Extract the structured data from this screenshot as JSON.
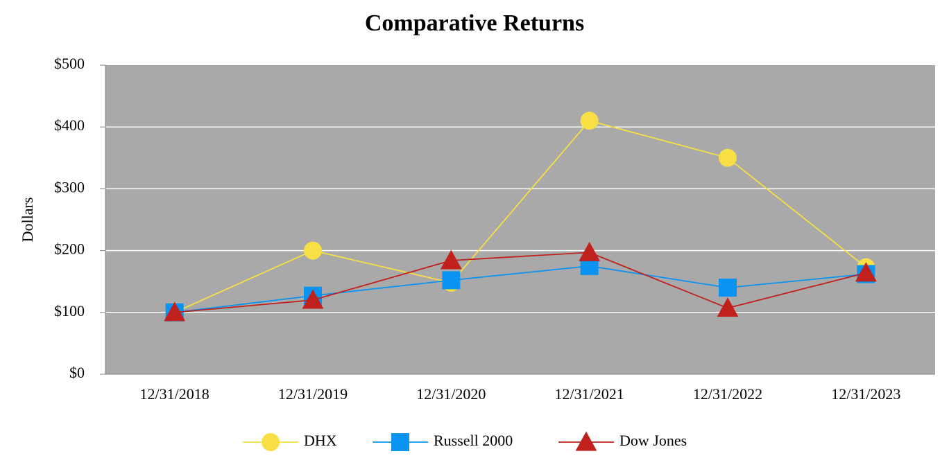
{
  "chart_data": {
    "type": "line",
    "title": "Comparative Returns",
    "ylabel": "Dollars",
    "categories": [
      "12/31/2018",
      "12/31/2019",
      "12/31/2020",
      "12/31/2021",
      "12/31/2022",
      "12/31/2023"
    ],
    "series": [
      {
        "name": "DHX",
        "color": "#f7df45",
        "marker": "circle",
        "values": [
          100,
          200,
          148,
          410,
          350,
          173
        ]
      },
      {
        "name": "Russell 2000",
        "color": "#0a93f0",
        "marker": "square",
        "values": [
          100,
          127,
          152,
          175,
          140,
          162
        ]
      },
      {
        "name": "Dow Jones",
        "color": "#c0211c",
        "marker": "triangle",
        "values": [
          100,
          120,
          184,
          197,
          107,
          164
        ]
      }
    ],
    "ylim": [
      0,
      500
    ],
    "yticks": [
      {
        "value": 0,
        "label": "$0"
      },
      {
        "value": 100,
        "label": "$100"
      },
      {
        "value": 200,
        "label": "$200"
      },
      {
        "value": 300,
        "label": "$300"
      },
      {
        "value": 400,
        "label": "$400"
      },
      {
        "value": 500,
        "label": "$500"
      }
    ],
    "grid": true,
    "legend": "bottom"
  }
}
